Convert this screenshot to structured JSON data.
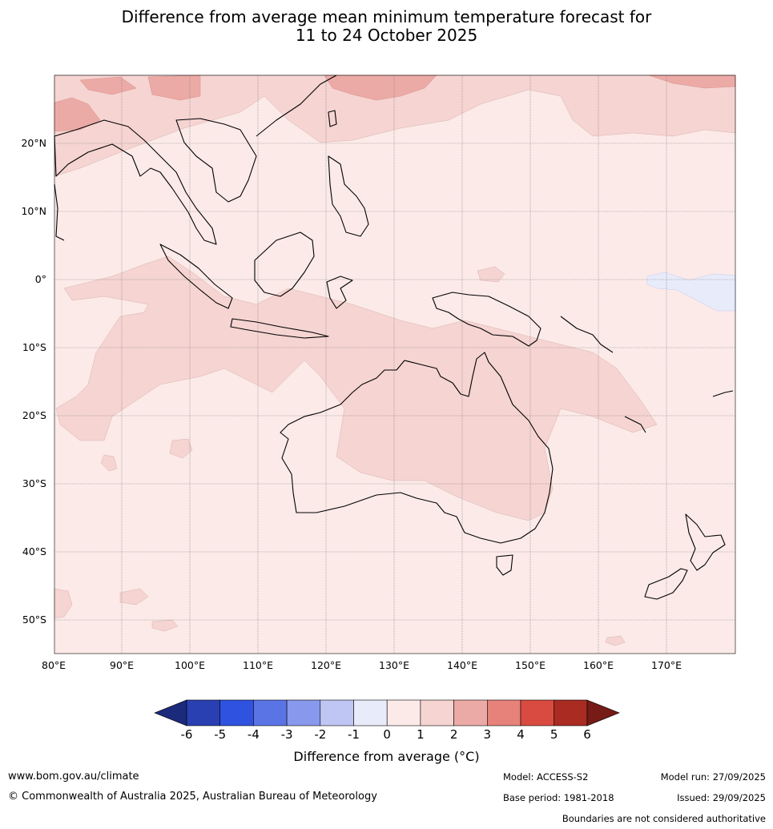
{
  "title_line1": "Difference from average mean minimum temperature forecast for",
  "title_line2": "11 to 24 October 2025",
  "map": {
    "lon_labels": [
      "80°E",
      "90°E",
      "100°E",
      "110°E",
      "120°E",
      "130°E",
      "140°E",
      "150°E",
      "160°E",
      "170°E"
    ],
    "lat_labels": [
      "20°N",
      "10°N",
      "0°",
      "10°S",
      "20°S",
      "30°S",
      "40°S",
      "50°S"
    ],
    "background_anomaly_color": "#fbeae8",
    "land_outline_color": "#000000"
  },
  "colorbar": {
    "tick_labels": [
      "-6",
      "-5",
      "-4",
      "-3",
      "-2",
      "-1",
      "0",
      "1",
      "2",
      "3",
      "4",
      "5",
      "6"
    ],
    "colors": [
      "#1c2a7c",
      "#2840b2",
      "#2f52e0",
      "#5a74e6",
      "#8898ec",
      "#bfc6f3",
      "#e8ebfa",
      "#fbeae8",
      "#f5d4d2",
      "#ecaaa6",
      "#e6827a",
      "#d94b40",
      "#a92b21",
      "#761b15"
    ],
    "label": "Difference from average (°C)"
  },
  "footer": {
    "website": "www.bom.gov.au/climate",
    "copyright": "© Commonwealth of Australia 2025, Australian Bureau of Meteorology",
    "model": "Model: ACCESS-S2",
    "base_period": "Base period: 1981-2018",
    "model_run": "Model run: 27/09/2025",
    "issued": "Issued: 29/09/2025",
    "boundaries_note": "Boundaries are not considered authoritative"
  }
}
